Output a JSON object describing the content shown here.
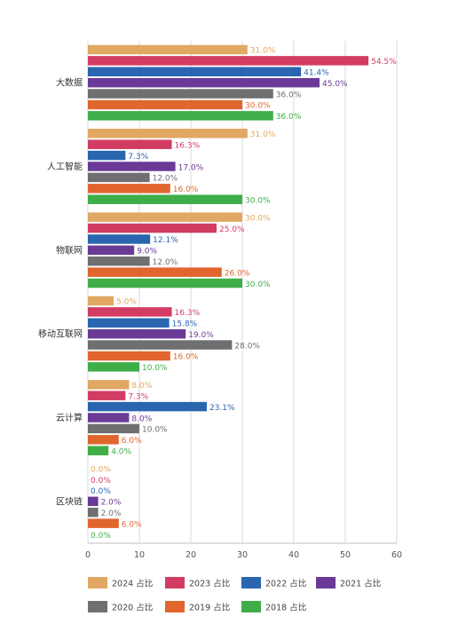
{
  "chart_data": {
    "type": "bar",
    "orientation": "horizontal",
    "categories": [
      "大数据",
      "人工智能",
      "物联网",
      "移动互联网",
      "云计算",
      "区块链"
    ],
    "series": [
      {
        "name": "2024 占比",
        "color": "#E0A862",
        "values": [
          31.0,
          31.0,
          30.0,
          5.0,
          8.0,
          0.0
        ],
        "labels": [
          "31.0%",
          "31.0%",
          "30.0%",
          "5.0%",
          "8.0%",
          "0.0%"
        ]
      },
      {
        "name": "2023 占比",
        "color": "#D23C63",
        "values": [
          54.5,
          16.3,
          25.0,
          16.3,
          7.3,
          0.0
        ],
        "labels": [
          "54.5%",
          "16.3%",
          "25.0%",
          "16.3%",
          "7.3%",
          "0.0%"
        ]
      },
      {
        "name": "2022 占比",
        "color": "#2A66B0",
        "values": [
          41.4,
          7.3,
          12.1,
          15.8,
          23.1,
          0.0
        ],
        "labels": [
          "41.4%",
          "7.3%",
          "12.1%",
          "15.8%",
          "23.1%",
          "0.0%"
        ]
      },
      {
        "name": "2021 占比",
        "color": "#6A3A96",
        "values": [
          45.0,
          17.0,
          9.0,
          19.0,
          8.0,
          2.0
        ],
        "labels": [
          "45.0%",
          "17.0%",
          "9.0%",
          "19.0%",
          "8.0%",
          "2.0%"
        ]
      },
      {
        "name": "2020 占比",
        "color": "#6F6F72",
        "values": [
          36.0,
          12.0,
          12.0,
          28.0,
          10.0,
          2.0
        ],
        "labels": [
          "36.0%",
          "12.0%",
          "12.0%",
          "28.0%",
          "10.0%",
          "2.0%"
        ]
      },
      {
        "name": "2019 占比",
        "color": "#E0662E",
        "values": [
          30.0,
          16.0,
          26.0,
          16.0,
          6.0,
          6.0
        ],
        "labels": [
          "30.0%",
          "16.0%",
          "26.0%",
          "16.0%",
          "6.0%",
          "6.0%"
        ]
      },
      {
        "name": "2018 占比",
        "color": "#3FAE49",
        "values": [
          36.0,
          30.0,
          30.0,
          10.0,
          4.0,
          0.0
        ],
        "labels": [
          "36.0%",
          "30.0%",
          "30.0%",
          "10.0%",
          "4.0%",
          "0.0%"
        ]
      }
    ],
    "xlim": [
      0,
      60
    ],
    "xticks": [
      "0",
      "10",
      "20",
      "30",
      "40",
      "50",
      "60"
    ],
    "grid": true,
    "legend_position": "bottom"
  }
}
